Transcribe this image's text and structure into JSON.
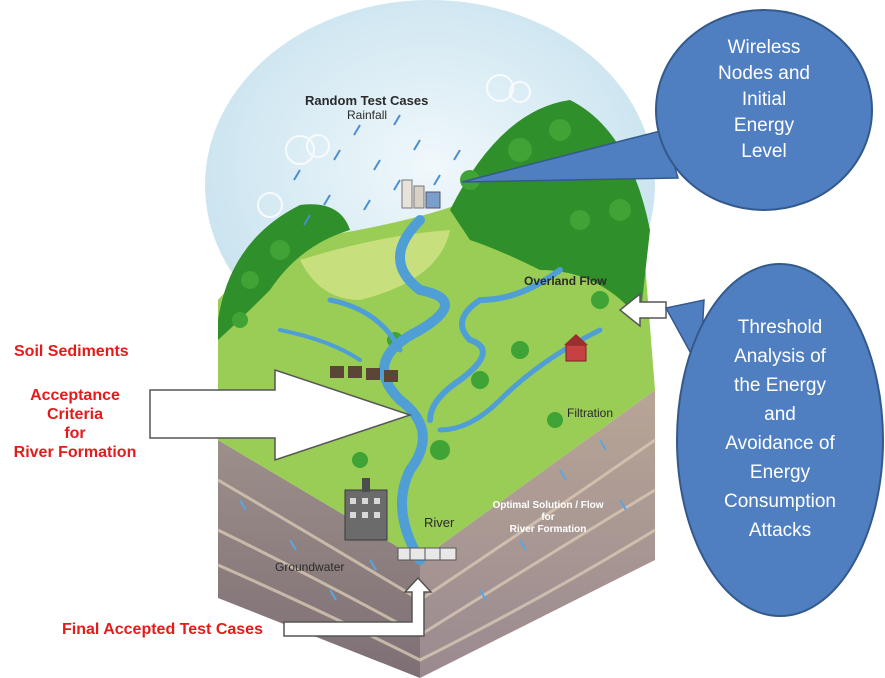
{
  "landscape": {
    "rainfall_title": "Random Test Cases",
    "rainfall_sub": "Rainfall",
    "overland_flow": "Overland Flow",
    "filtration": "Filtration",
    "river": "River",
    "groundwater": "Groundwater",
    "optimal_line1": "Optimal Solution / Flow",
    "optimal_line2": "for",
    "optimal_line3": "River Formation"
  },
  "left_labels": {
    "soil_sediments": "Soil Sediments",
    "acceptance_line1": "Acceptance",
    "acceptance_line2": "Criteria",
    "acceptance_line3": "for",
    "acceptance_line4": "River Formation",
    "final_accepted": "Final Accepted Test Cases"
  },
  "callouts": {
    "wireless": [
      "Wireless",
      "Nodes and",
      "Initial",
      "Energy",
      "Level"
    ],
    "threshold": [
      "Threshold",
      "Analysis of",
      "the Energy",
      "and",
      "Avoidance of",
      "Energy",
      "Consumption",
      "Attacks"
    ]
  },
  "colors": {
    "callout_fill": "#4f7fc0",
    "callout_stroke": "#34598c",
    "label_red": "#e41b1b",
    "sky": "#d6ecf4",
    "grass": "#8cc84a",
    "forest": "#2f8f2a",
    "water": "#4f9fd6",
    "soil_dark": "#8a7a7a",
    "soil_light": "#c9b7a4"
  }
}
